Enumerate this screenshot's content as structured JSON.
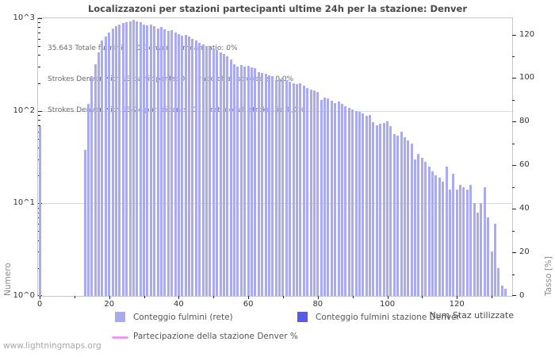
{
  "watermark": "www.lightningmaps.org",
  "chart_data": {
    "type": "bar",
    "title": "Localizzazoni per stazioni partecipanti ultime 24h per la stazione: Denver",
    "xlabel": "Num Staz utilizzate",
    "ylabel_left": "Numero",
    "ylabel_right": "Tasso [%]",
    "annotation_lines": [
      "35.643 Totale fulmini      0 Denver      mean ratio: 0%",
      "Strokes Denver with 13 participants: 0      ratio of all strokes is: 0,0%",
      "Strokes Denver with 13-24 participants: 0      ratio of all strokes is: 0,0%"
    ],
    "x_axis": {
      "min": 0,
      "max": 135,
      "major_ticks": [
        0,
        20,
        40,
        60,
        80,
        100,
        120
      ],
      "minor_ticks": [
        10,
        30,
        50,
        70,
        90,
        110,
        130
      ]
    },
    "y_axis_left": {
      "scale": "log",
      "decades": 3,
      "tick_labels": [
        "10^0",
        "10^1",
        "10^2",
        "10^3"
      ]
    },
    "y_axis_right": {
      "min": 0,
      "max": 127.5,
      "major_ticks": [
        0,
        20,
        40,
        60,
        80,
        100,
        120
      ],
      "minor_step": 10
    },
    "colors": {
      "bars_network": "#aaaaee",
      "bars_station": "#5858ee",
      "participation_line": "#ee9aee",
      "grid": "#d9d9d9",
      "frame": "#c6c6c6"
    },
    "legend": [
      {
        "label": "Conteggio fulmini (rete)",
        "swatch": "square",
        "color": "#aaaaee"
      },
      {
        "label": "Conteggio fulmini stazione Denver",
        "swatch": "square",
        "color": "#5858ee"
      },
      {
        "label": "Partecipazione della stazione Denver %",
        "swatch": "line",
        "color": "#ee9aee"
      }
    ],
    "series": [
      {
        "name": "Conteggio fulmini (rete)",
        "points": [
          [
            0,
            68
          ],
          [
            13,
            38
          ],
          [
            14,
            118
          ],
          [
            15,
            237
          ],
          [
            16,
            318
          ],
          [
            17,
            427
          ],
          [
            18,
            575
          ],
          [
            19,
            633
          ],
          [
            20,
            700
          ],
          [
            21,
            770
          ],
          [
            22,
            825
          ],
          [
            23,
            855
          ],
          [
            24,
            880
          ],
          [
            25,
            905
          ],
          [
            26,
            930
          ],
          [
            27,
            955
          ],
          [
            28,
            930
          ],
          [
            29,
            900
          ],
          [
            30,
            858
          ],
          [
            31,
            835
          ],
          [
            32,
            855
          ],
          [
            33,
            820
          ],
          [
            34,
            780
          ],
          [
            35,
            800
          ],
          [
            36,
            765
          ],
          [
            37,
            730
          ],
          [
            38,
            745
          ],
          [
            39,
            700
          ],
          [
            40,
            680
          ],
          [
            41,
            650
          ],
          [
            42,
            665
          ],
          [
            43,
            630
          ],
          [
            44,
            600
          ],
          [
            45,
            570
          ],
          [
            46,
            540
          ],
          [
            47,
            520
          ],
          [
            48,
            500
          ],
          [
            49,
            490
          ],
          [
            50,
            470
          ],
          [
            51,
            450
          ],
          [
            52,
            430
          ],
          [
            53,
            410
          ],
          [
            54,
            385
          ],
          [
            55,
            357
          ],
          [
            56,
            316
          ],
          [
            57,
            298
          ],
          [
            58,
            310
          ],
          [
            59,
            300
          ],
          [
            60,
            305
          ],
          [
            61,
            295
          ],
          [
            62,
            288
          ],
          [
            63,
            261
          ],
          [
            64,
            255
          ],
          [
            65,
            250
          ],
          [
            66,
            243
          ],
          [
            67,
            236
          ],
          [
            68,
            214
          ],
          [
            69,
            222
          ],
          [
            70,
            228
          ],
          [
            71,
            215
          ],
          [
            72,
            206
          ],
          [
            73,
            200
          ],
          [
            74,
            194
          ],
          [
            75,
            200
          ],
          [
            76,
            185
          ],
          [
            77,
            177
          ],
          [
            78,
            170
          ],
          [
            79,
            166
          ],
          [
            80,
            160
          ],
          [
            81,
            131
          ],
          [
            82,
            140
          ],
          [
            83,
            135
          ],
          [
            84,
            128
          ],
          [
            85,
            122
          ],
          [
            86,
            125
          ],
          [
            87,
            118
          ],
          [
            88,
            112
          ],
          [
            89,
            108
          ],
          [
            90,
            104
          ],
          [
            91,
            100
          ],
          [
            92,
            97
          ],
          [
            93,
            93
          ],
          [
            94,
            88
          ],
          [
            95,
            90
          ],
          [
            96,
            75
          ],
          [
            97,
            70
          ],
          [
            98,
            72
          ],
          [
            99,
            74
          ],
          [
            100,
            77
          ],
          [
            101,
            68
          ],
          [
            102,
            56
          ],
          [
            103,
            54
          ],
          [
            104,
            60
          ],
          [
            105,
            52
          ],
          [
            106,
            48
          ],
          [
            107,
            44
          ],
          [
            108,
            30
          ],
          [
            109,
            34
          ],
          [
            110,
            31
          ],
          [
            111,
            28
          ],
          [
            112,
            25
          ],
          [
            113,
            22
          ],
          [
            114,
            20
          ],
          [
            115,
            19
          ],
          [
            116,
            17
          ],
          [
            117,
            25
          ],
          [
            118,
            14
          ],
          [
            119,
            21
          ],
          [
            120,
            14
          ],
          [
            121,
            16
          ],
          [
            122,
            15
          ],
          [
            123,
            14
          ],
          [
            124,
            16
          ],
          [
            125,
            10
          ],
          [
            126,
            8
          ],
          [
            127,
            10
          ],
          [
            128,
            15
          ],
          [
            129,
            7
          ],
          [
            130,
            3
          ],
          [
            131,
            6
          ],
          [
            132,
            2
          ],
          [
            133,
            1.3
          ],
          [
            134,
            1.2
          ]
        ]
      },
      {
        "name": "Conteggio fulmini stazione Denver",
        "points": []
      },
      {
        "name": "Partecipazione della stazione Denver %",
        "type": "line",
        "unit": "%",
        "points": []
      }
    ]
  }
}
